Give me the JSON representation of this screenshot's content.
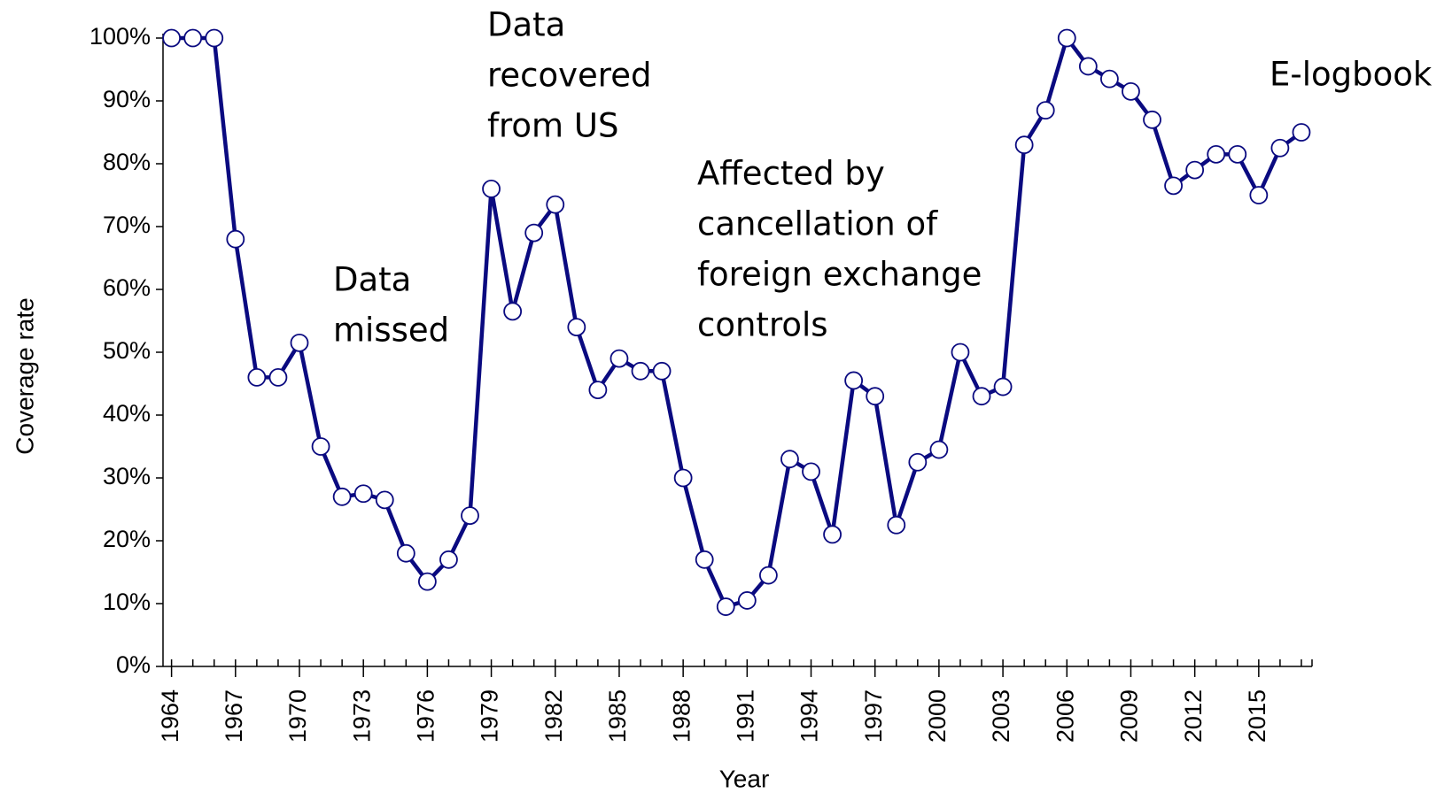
{
  "chart_data": {
    "type": "line",
    "x_label": "Year",
    "y_label": "Coverage rate",
    "x": [
      1964,
      1965,
      1966,
      1967,
      1968,
      1969,
      1970,
      1971,
      1972,
      1973,
      1974,
      1975,
      1976,
      1977,
      1978,
      1979,
      1980,
      1981,
      1982,
      1983,
      1984,
      1985,
      1986,
      1987,
      1988,
      1989,
      1990,
      1991,
      1992,
      1993,
      1994,
      1995,
      1996,
      1997,
      1998,
      1999,
      2000,
      2001,
      2002,
      2003,
      2004,
      2005,
      2006,
      2007,
      2008,
      2009,
      2010,
      2011,
      2012,
      2013,
      2014,
      2015,
      2016,
      2017
    ],
    "series": [
      {
        "color": "#0a0a80",
        "values": [
          100,
          100,
          100,
          68,
          46,
          46,
          51.5,
          35,
          27,
          27.5,
          26.5,
          18,
          13.5,
          17,
          24,
          76,
          56.5,
          69,
          73.5,
          54,
          44,
          49,
          47,
          47,
          30,
          17,
          9.5,
          10.5,
          14.5,
          33,
          31,
          21,
          45.5,
          43,
          22.5,
          32.5,
          34.5,
          50,
          43,
          44.5,
          83,
          88.5,
          100,
          95.5,
          93.5,
          91.5,
          87,
          76.5,
          79,
          81.5,
          81.5,
          75,
          82.5,
          85
        ]
      }
    ],
    "xlim": [
      1963.6,
      2017.5
    ],
    "xticks": [
      1964,
      1967,
      1970,
      1973,
      1976,
      1979,
      1982,
      1985,
      1988,
      1991,
      1994,
      1997,
      2000,
      2003,
      2006,
      2009,
      2012,
      2015
    ],
    "ylim": [
      0,
      100
    ],
    "yticks": [
      {
        "value": 0,
        "label": "0%"
      },
      {
        "value": 10,
        "label": "10%"
      },
      {
        "value": 20,
        "label": "20%"
      },
      {
        "value": 30,
        "label": "30%"
      },
      {
        "value": 40,
        "label": "40%"
      },
      {
        "value": 50,
        "label": "50%"
      },
      {
        "value": 60,
        "label": "60%"
      },
      {
        "value": 70,
        "label": "70%"
      },
      {
        "value": 80,
        "label": "80%"
      },
      {
        "value": 90,
        "label": "90%"
      },
      {
        "value": 100,
        "label": "100%"
      }
    ],
    "annotations": [
      {
        "lines": [
          "Data",
          "missed"
        ]
      },
      {
        "lines": [
          "Data",
          "recovered",
          "from US"
        ]
      },
      {
        "lines": [
          "Affected by",
          "cancellation of",
          "foreign exchange",
          "controls"
        ]
      },
      {
        "lines": [
          "E-logbook"
        ]
      }
    ]
  }
}
